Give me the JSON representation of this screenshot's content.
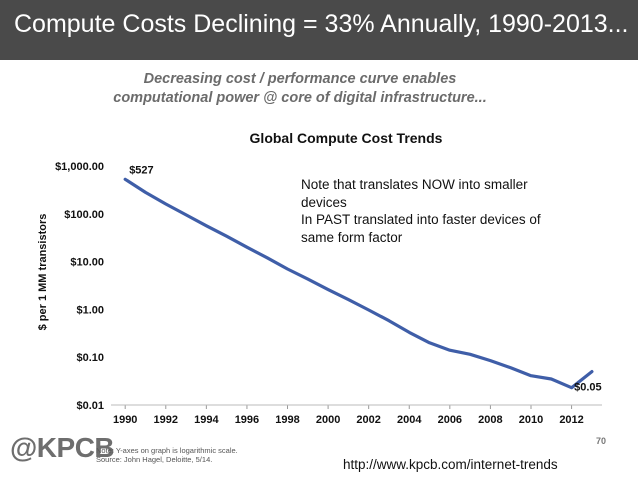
{
  "slide": {
    "title": "Compute Costs Declining = 33% Annually, 1990-2013...",
    "subtitle_lines": [
      "Decreasing cost / performance curve enables",
      "computational power @ core of digital infrastructure..."
    ],
    "note_lines": [
      "Note that translates NOW into smaller",
      "devices",
      "In PAST translated into faster devices of",
      "same form factor"
    ],
    "logo": "@KPCB",
    "footnote_lines": [
      "Note: Y-axes on graph is logarithmic scale.",
      "Source: John Hagel, Deloitte, 5/14."
    ],
    "page_number": "70",
    "url": "http://www.kpcb.com/internet-trends"
  },
  "chart_data": {
    "type": "line",
    "title": "Global Compute Cost Trends",
    "ylabel": "$ per 1 MM transistors",
    "xlabel": "",
    "y_scale": "log",
    "ylim": [
      0.01,
      1000
    ],
    "xlim": [
      1989.3,
      2013.5
    ],
    "y_ticks": [
      {
        "value": 1000,
        "label": "$1,000.00"
      },
      {
        "value": 100,
        "label": "$100.00"
      },
      {
        "value": 10,
        "label": "$10.00"
      },
      {
        "value": 1,
        "label": "$1.00"
      },
      {
        "value": 0.1,
        "label": "$0.10"
      },
      {
        "value": 0.01,
        "label": "$0.01"
      }
    ],
    "x_ticks": [
      "1990",
      "1992",
      "1994",
      "1996",
      "1998",
      "2000",
      "2002",
      "2004",
      "2006",
      "2008",
      "2010",
      "2012"
    ],
    "grid": false,
    "legend": "none",
    "series_color": "#3f5ea8",
    "series": [
      {
        "x": [
          1990,
          1991,
          1992,
          1993,
          1994,
          1995,
          1996,
          1997,
          1998,
          1999,
          2000,
          2001,
          2002,
          2003,
          2004,
          2005,
          2006,
          2007,
          2008,
          2009,
          2010,
          2011,
          2012,
          2013
        ],
        "values": [
          527,
          280,
          160,
          95,
          56,
          34,
          20,
          12,
          7,
          4.3,
          2.6,
          1.6,
          0.97,
          0.58,
          0.33,
          0.2,
          0.14,
          0.115,
          0.085,
          0.06,
          0.041,
          0.035,
          0.023,
          0.05
        ]
      }
    ],
    "annotations": [
      {
        "x": 1990,
        "y": 527,
        "text": "$527"
      },
      {
        "x": 2013,
        "y": 0.05,
        "text": "$0.05"
      }
    ]
  }
}
